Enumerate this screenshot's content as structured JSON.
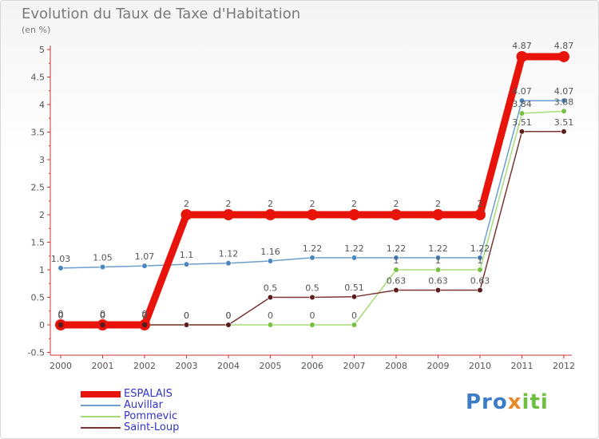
{
  "header": {
    "title": "Evolution du Taux de Taxe d'Habitation",
    "subtitle": "(en %)"
  },
  "brand": {
    "part1": "Pro",
    "part2": "x",
    "part3": "iti"
  },
  "chart_data": {
    "type": "line",
    "title": "Evolution du Taux de Taxe d'Habitation",
    "ylabel": "(en %)",
    "xlabel": "",
    "ylim": [
      -0.5,
      5
    ],
    "yticks": [
      -0.5,
      0,
      0.5,
      1,
      1.5,
      2,
      2.5,
      3,
      3.5,
      4,
      4.5,
      5
    ],
    "ytick_labels": [
      "-0.5",
      "0",
      "0.5",
      "1",
      "1.5",
      "2",
      "2.5",
      "3",
      "3.5",
      "4",
      "4.5",
      "5"
    ],
    "categories": [
      "2000",
      "2001",
      "2002",
      "2003",
      "2004",
      "2005",
      "2006",
      "2007",
      "2008",
      "2009",
      "2010",
      "2011",
      "2012"
    ],
    "series": [
      {
        "name": "ESPALAIS",
        "color": "#e8140c",
        "emphasis": true,
        "values": [
          0,
          0,
          0,
          2,
          2,
          2,
          2,
          2,
          2,
          2,
          2,
          4.87,
          4.87
        ],
        "labels": [
          "0",
          "0",
          "0",
          "2",
          "2",
          "2",
          "2",
          "2",
          "2",
          "2",
          "2",
          "4.87",
          "4.87"
        ]
      },
      {
        "name": "Auvillar",
        "color": "#6c9fcb",
        "marker": "#4a86bf",
        "values": [
          1.03,
          1.05,
          1.07,
          1.1,
          1.12,
          1.16,
          1.22,
          1.22,
          1.22,
          1.22,
          1.22,
          4.07,
          4.07
        ],
        "labels": [
          "1.03",
          "1.05",
          "1.07",
          "1.1",
          "1.12",
          "1.16",
          "1.22",
          "1.22",
          "1.22",
          "1.22",
          "1.22",
          "4.07",
          "4.07"
        ]
      },
      {
        "name": "Pommevic",
        "color": "#a6dc78",
        "marker": "#76c043",
        "values": [
          0,
          0,
          0,
          0,
          0,
          0,
          0,
          0,
          1,
          1,
          1,
          3.84,
          3.88
        ],
        "labels": [
          "0",
          "0",
          "0",
          "0",
          "0",
          "0",
          "0",
          "0",
          "1",
          "1",
          "1",
          "3.84",
          "3.88"
        ]
      },
      {
        "name": "Saint-Loup",
        "color": "#7b3434",
        "marker": "#5a1c1c",
        "values": [
          0,
          0,
          0,
          0,
          0,
          0.5,
          0.5,
          0.51,
          0.63,
          0.63,
          0.63,
          3.51,
          3.51
        ],
        "labels": [
          "0",
          "0",
          "0",
          "0",
          "0",
          "0.5",
          "0.5",
          "0.51",
          "0.63",
          "0.63",
          "0.63",
          "3.51",
          "3.51"
        ]
      }
    ],
    "legend": "bottom-left",
    "grid": false
  }
}
